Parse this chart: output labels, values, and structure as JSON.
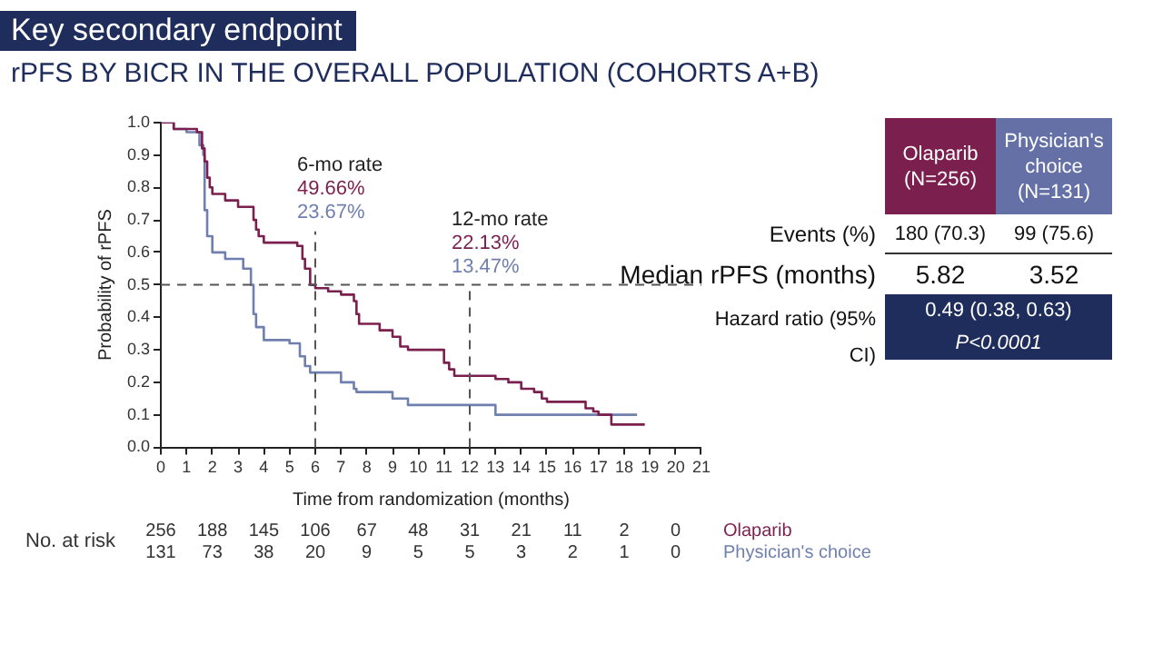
{
  "chart_data": [
    {
      "type": "step",
      "title": "Key secondary endpoint",
      "subtitle": "rPFS BY BICR IN THE OVERALL POPULATION (COHORTS A+B)",
      "xlabel": "Time from randomization (months)",
      "ylabel": "Probability of rPFS",
      "grid": false,
      "legend": false,
      "xlim": [
        0,
        21
      ],
      "xticks": [
        0,
        1,
        2,
        3,
        4,
        5,
        6,
        7,
        8,
        9,
        10,
        11,
        12,
        13,
        14,
        15,
        16,
        17,
        18,
        19,
        20,
        21
      ],
      "ylim": [
        0,
        1
      ],
      "yticks": [
        {
          "value": 0,
          "label": "0.0"
        },
        0.1,
        0.2,
        0.3,
        0.4,
        0.5,
        0.6,
        0.7,
        0.8,
        0.9,
        {
          "value": 1,
          "label": "1.0"
        }
      ],
      "series": [
        {
          "name": "Olaparib",
          "color": "#7b1f4f",
          "x": [
            0,
            0.5,
            1.4,
            1.6,
            1.7,
            1.8,
            1.9,
            2.0,
            2.5,
            3.0,
            3.6,
            3.7,
            3.8,
            4.0,
            5.3,
            5.5,
            5.6,
            5.8,
            6.0,
            6.5,
            7.0,
            7.5,
            7.6,
            7.7,
            8.5,
            9.0,
            9.3,
            9.6,
            11.0,
            11.2,
            11.4,
            12.5,
            13.0,
            13.5,
            14.0,
            14.5,
            14.8,
            15.0,
            16.5,
            16.8,
            17.0,
            17.5,
            18.8
          ],
          "values": [
            1.0,
            0.98,
            0.97,
            0.92,
            0.88,
            0.83,
            0.8,
            0.78,
            0.76,
            0.74,
            0.7,
            0.67,
            0.65,
            0.63,
            0.62,
            0.58,
            0.55,
            0.5,
            0.49,
            0.48,
            0.47,
            0.45,
            0.41,
            0.38,
            0.36,
            0.34,
            0.31,
            0.3,
            0.26,
            0.24,
            0.22,
            0.22,
            0.21,
            0.2,
            0.18,
            0.17,
            0.15,
            0.14,
            0.12,
            0.11,
            0.1,
            0.07,
            0.07
          ]
        },
        {
          "name": "Physician's choice",
          "color": "#6f7fae",
          "x": [
            0,
            0.5,
            1.0,
            1.5,
            1.65,
            1.7,
            1.8,
            2.0,
            2.5,
            3.2,
            3.5,
            3.6,
            3.7,
            4.0,
            5.0,
            5.4,
            5.6,
            5.8,
            6.0,
            7.0,
            7.5,
            7.6,
            8.0,
            9.0,
            9.6,
            12.5,
            13.0,
            18.5
          ],
          "values": [
            1.0,
            0.98,
            0.97,
            0.93,
            0.9,
            0.73,
            0.65,
            0.6,
            0.58,
            0.55,
            0.5,
            0.41,
            0.37,
            0.33,
            0.32,
            0.28,
            0.25,
            0.23,
            0.23,
            0.2,
            0.18,
            0.17,
            0.17,
            0.15,
            0.13,
            0.13,
            0.1,
            0.1
          ]
        }
      ],
      "ref_lines": [
        {
          "axis": "y",
          "value": 0.5,
          "line_style": "dashed",
          "color": "#555555"
        },
        {
          "axis": "x",
          "value": 6,
          "line_style": "dashed",
          "color": "#555555"
        },
        {
          "axis": "x",
          "value": 12,
          "line_style": "dashed",
          "color": "#555555"
        }
      ],
      "annotations": [
        "6-mo rate",
        "49.66%",
        "23.67%",
        "12-mo rate",
        "22.13%",
        "13.47%",
        "No. at risk",
        "256 188 145 106 67 48 31 21 11 2 0",
        "131 73 38 20 9 5 5 3 2 1 0"
      ]
    },
    {
      "type": "other",
      "annotations": [
        "Olaparib (N=256)",
        "Physician's choice (N=131)",
        "Events  (%)",
        "180 (70.3)",
        "99 (75.6)",
        "Median rPFS (months)",
        "5.82",
        "3.52",
        "Hazard ratio (95% CI)",
        "0.49 (0.38, 0.63)",
        "P<0.0001"
      ]
    }
  ]
}
